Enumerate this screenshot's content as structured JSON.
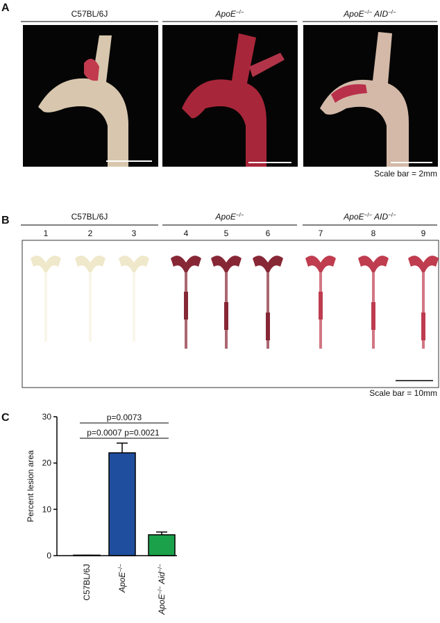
{
  "panel_a": {
    "label": "A",
    "columns": [
      [
        {
          "text": "C57BL/6J"
        }
      ],
      [
        {
          "text": "ApoE",
          "italic": true
        },
        {
          "text": "−/−",
          "sup": true
        }
      ],
      [
        {
          "text": "ApoE",
          "italic": true
        },
        {
          "text": "−/−",
          "sup": true
        },
        {
          "text": " AID",
          "italic": true
        },
        {
          "text": "−/−",
          "sup": true
        }
      ]
    ],
    "scale_bar": "Scale bar = 2mm"
  },
  "panel_b": {
    "label": "B",
    "groups": [
      [
        {
          "text": "C57BL/6J"
        }
      ],
      [
        {
          "text": "ApoE",
          "italic": true
        },
        {
          "text": "−/−",
          "sup": true
        }
      ],
      [
        {
          "text": "ApoE",
          "italic": true
        },
        {
          "text": "−/−",
          "sup": true
        },
        {
          "text": " AID",
          "italic": true
        },
        {
          "text": "−/−",
          "sup": true
        }
      ]
    ],
    "samples": [
      "1",
      "2",
      "3",
      "4",
      "5",
      "6",
      "7",
      "8",
      "9"
    ],
    "scale_bar": "Scale bar = 10mm"
  },
  "chart_data": {
    "type": "bar",
    "label": "C",
    "y_label": "Percent lesion area",
    "categories": [
      [
        {
          "text": "C57BL/6J"
        }
      ],
      [
        {
          "text": "ApoE",
          "italic": true
        },
        {
          "text": "−/−",
          "sup": true
        }
      ],
      [
        {
          "text": "ApoE",
          "italic": true
        },
        {
          "text": "−/−",
          "sup": true
        },
        {
          "text": " Aid",
          "italic": true
        },
        {
          "text": "−/−",
          "sup": true
        }
      ]
    ],
    "values": [
      0.1,
      22.2,
      4.5
    ],
    "errors": [
      0,
      2.1,
      0.6
    ],
    "colors": [
      "#1f4e9e",
      "#1f4e9e",
      "#1aa14a"
    ],
    "ylim": [
      0,
      30
    ],
    "yticks": [
      0,
      10,
      20,
      30
    ],
    "annotations": [
      {
        "text": "p=0.0007",
        "from": 0,
        "to": 1
      },
      {
        "text": "p=0.0021",
        "from": 1,
        "to": 2
      },
      {
        "text": "p=0.0073",
        "from": 0,
        "to": 2
      }
    ]
  }
}
